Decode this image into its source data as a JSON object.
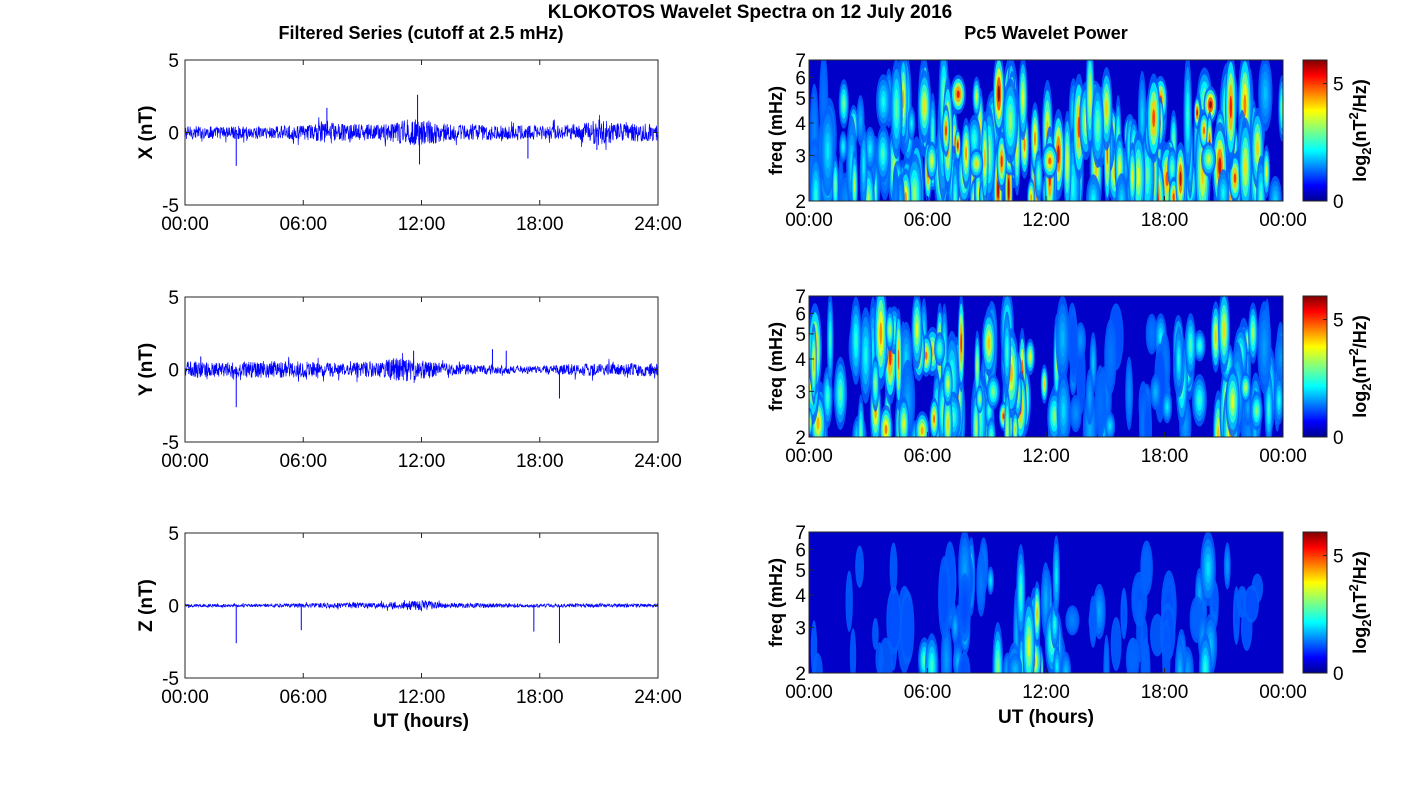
{
  "figure": {
    "title": "KLOKOTOS Wavelet Spectra on 12 July 2016",
    "left_title": "Filtered Series (cutoff at 2.5 mHz)",
    "right_title": "Pc5 Wavelet Power",
    "xlabel": "UT (hours)"
  },
  "chart_data": [
    {
      "type": "line",
      "component": "X",
      "ylabel": "X (nT)",
      "xlim": [
        0,
        24
      ],
      "ylim": [
        -5,
        5
      ],
      "xticks": [
        "00:00",
        "06:00",
        "12:00",
        "18:00",
        "24:00"
      ],
      "yticks": [
        "5",
        "0",
        "-5"
      ],
      "color": "#0000ff",
      "envelope": {
        "x": [
          0,
          2,
          4,
          6,
          7,
          8,
          10,
          11,
          12,
          13,
          14,
          16,
          18,
          19,
          20,
          21,
          22,
          24
        ],
        "amp": [
          0.45,
          0.45,
          0.45,
          0.5,
          0.7,
          0.6,
          0.55,
          0.9,
          1.0,
          0.65,
          0.55,
          0.5,
          0.5,
          0.5,
          0.65,
          0.9,
          0.65,
          0.6
        ]
      },
      "spikes": [
        {
          "x": 2.6,
          "y": -2.3
        },
        {
          "x": 7.2,
          "y": 1.7
        },
        {
          "x": 11.8,
          "y": 2.6
        },
        {
          "x": 11.9,
          "y": -2.2
        },
        {
          "x": 17.4,
          "y": -1.8
        },
        {
          "x": 20.9,
          "y": -1.2
        }
      ]
    },
    {
      "type": "line",
      "component": "Y",
      "ylabel": "Y (nT)",
      "xlim": [
        0,
        24
      ],
      "ylim": [
        -5,
        5
      ],
      "xticks": [
        "00:00",
        "06:00",
        "12:00",
        "18:00",
        "24:00"
      ],
      "yticks": [
        "5",
        "0",
        "-5"
      ],
      "color": "#0000ff",
      "envelope": {
        "x": [
          0,
          2,
          4,
          6,
          8,
          10,
          11,
          12,
          13,
          14,
          16,
          18,
          20,
          22,
          24
        ],
        "amp": [
          0.6,
          0.5,
          0.6,
          0.55,
          0.45,
          0.6,
          0.9,
          0.7,
          0.45,
          0.35,
          0.3,
          0.25,
          0.45,
          0.4,
          0.5
        ]
      },
      "spikes": [
        {
          "x": 2.6,
          "y": -2.6
        },
        {
          "x": 0.8,
          "y": 0.9
        },
        {
          "x": 11.6,
          "y": 1.3
        },
        {
          "x": 15.6,
          "y": 1.4
        },
        {
          "x": 16.3,
          "y": 1.3
        },
        {
          "x": 19.0,
          "y": -2.0
        }
      ]
    },
    {
      "type": "line",
      "component": "Z",
      "ylabel": "Z (nT)",
      "xlim": [
        0,
        24
      ],
      "ylim": [
        -5,
        5
      ],
      "xticks": [
        "00:00",
        "06:00",
        "12:00",
        "18:00",
        "24:00"
      ],
      "yticks": [
        "5",
        "0",
        "-5"
      ],
      "color": "#0000ff",
      "envelope": {
        "x": [
          0,
          4,
          6,
          8,
          10,
          11,
          12,
          13,
          14,
          16,
          18,
          20,
          22,
          24
        ],
        "amp": [
          0.1,
          0.1,
          0.15,
          0.2,
          0.2,
          0.3,
          0.35,
          0.2,
          0.15,
          0.15,
          0.12,
          0.12,
          0.12,
          0.1
        ]
      },
      "spikes": [
        {
          "x": 2.6,
          "y": -2.6
        },
        {
          "x": 5.9,
          "y": -1.7
        },
        {
          "x": 17.7,
          "y": -1.8
        },
        {
          "x": 19.0,
          "y": -2.6
        }
      ]
    },
    {
      "type": "heatmap",
      "component": "X",
      "ylabel": "freq (mHz)",
      "xlim": [
        0,
        24
      ],
      "ylim": [
        2,
        7
      ],
      "yscale": "log",
      "xticks": [
        "00:00",
        "06:00",
        "12:00",
        "18:00",
        "00:00"
      ],
      "yticks": [
        "7",
        "6",
        "5",
        "4",
        "3",
        "2"
      ],
      "colorbar": {
        "label": "log2(nT2/Hz)",
        "ticks": [
          "5",
          "0"
        ],
        "range": [
          0,
          6
        ],
        "colormap": "jet"
      },
      "activity": {
        "x": [
          0,
          2,
          4,
          5,
          6,
          7,
          8,
          10,
          11,
          12,
          13,
          14,
          16,
          18,
          19,
          20,
          21,
          22,
          23,
          24
        ],
        "level": [
          0.5,
          0.55,
          0.45,
          0.75,
          0.95,
          1.0,
          0.85,
          0.95,
          1.0,
          0.95,
          0.85,
          0.8,
          0.7,
          0.8,
          0.9,
          1.0,
          0.85,
          0.75,
          0.6,
          0.5
        ]
      }
    },
    {
      "type": "heatmap",
      "component": "Y",
      "ylabel": "freq (mHz)",
      "xlim": [
        0,
        24
      ],
      "ylim": [
        2,
        7
      ],
      "yscale": "log",
      "xticks": [
        "00:00",
        "06:00",
        "12:00",
        "18:00",
        "00:00"
      ],
      "yticks": [
        "7",
        "6",
        "5",
        "4",
        "3",
        "2"
      ],
      "colorbar": {
        "label": "log2(nT2/Hz)",
        "ticks": [
          "5",
          "0"
        ],
        "range": [
          0,
          6
        ],
        "colormap": "jet"
      },
      "activity": {
        "x": [
          0,
          1,
          2,
          3,
          4,
          5,
          6,
          8,
          9,
          10,
          11,
          12,
          13,
          14,
          16,
          18,
          20,
          21,
          22,
          23,
          24
        ],
        "level": [
          0.9,
          0.55,
          0.4,
          0.6,
          0.95,
          0.6,
          0.7,
          0.8,
          0.9,
          0.75,
          1.0,
          0.9,
          0.3,
          0.35,
          0.3,
          0.35,
          0.65,
          0.9,
          0.6,
          0.5,
          0.35
        ]
      }
    },
    {
      "type": "heatmap",
      "component": "Z",
      "ylabel": "freq (mHz)",
      "xlim": [
        0,
        24
      ],
      "ylim": [
        2,
        7
      ],
      "yscale": "log",
      "xticks": [
        "00:00",
        "06:00",
        "12:00",
        "18:00",
        "00:00"
      ],
      "yticks": [
        "7",
        "6",
        "5",
        "4",
        "3",
        "2"
      ],
      "colorbar": {
        "label": "log2(nT2/Hz)",
        "ticks": [
          "5",
          "0"
        ],
        "range": [
          0,
          6
        ],
        "colormap": "jet"
      },
      "activity": {
        "x": [
          0,
          4,
          5,
          5.5,
          6,
          7,
          8,
          9,
          10,
          10.5,
          11,
          11.5,
          12,
          13,
          14,
          16,
          18,
          19,
          20,
          21,
          22,
          24
        ],
        "level": [
          0.05,
          0.1,
          0.2,
          0.45,
          0.4,
          0.35,
          0.35,
          0.45,
          0.55,
          0.6,
          0.75,
          1.0,
          0.65,
          0.35,
          0.3,
          0.2,
          0.25,
          0.3,
          0.4,
          0.3,
          0.2,
          0.05
        ]
      }
    }
  ]
}
